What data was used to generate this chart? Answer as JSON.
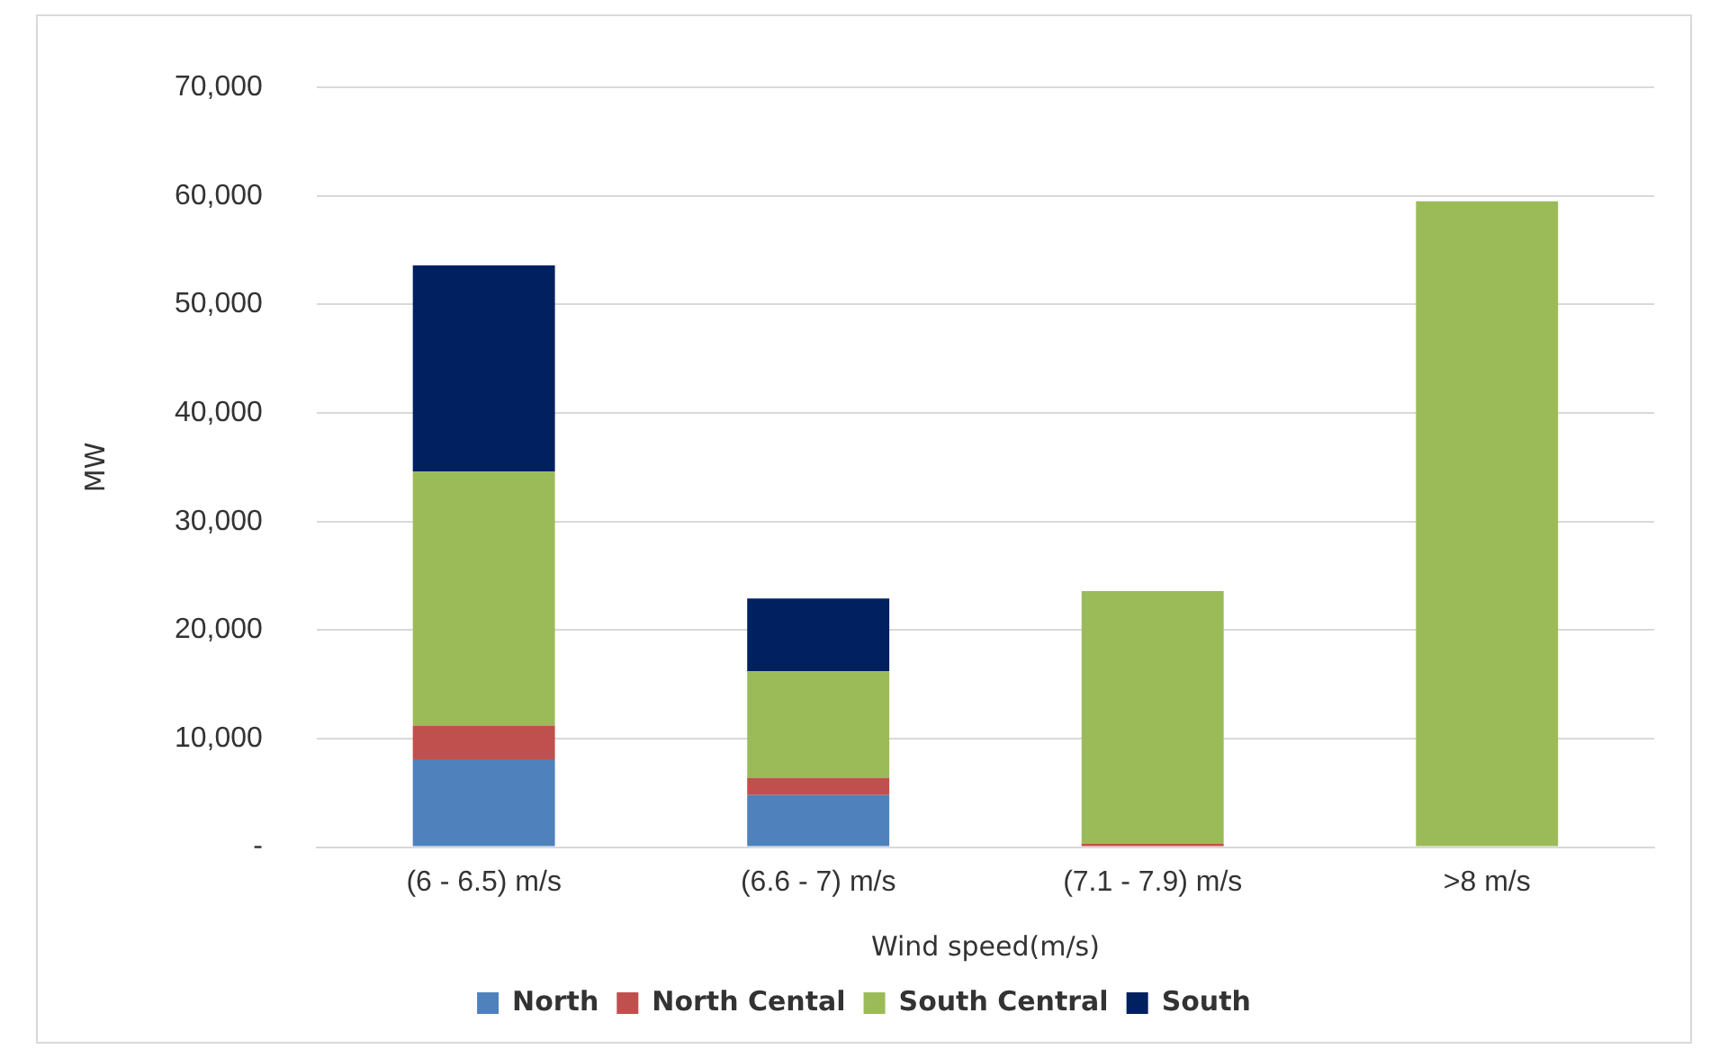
{
  "chart_data": {
    "type": "bar",
    "stacked": true,
    "xlabel": "Wind speed(m/s)",
    "ylabel": "MW",
    "categories": [
      "(6 - 6.5) m/s",
      "(6.6 - 7) m/s",
      "(7.1 - 7.9) m/s",
      ">8 m/s"
    ],
    "series": [
      {
        "name": "North",
        "color": "#4f81bd",
        "values": [
          8100,
          4800,
          0,
          0
        ]
      },
      {
        "name": "North Cental",
        "color": "#c0504d",
        "values": [
          3100,
          1600,
          300,
          0
        ]
      },
      {
        "name": "South Central",
        "color": "#9bbb59",
        "values": [
          23400,
          9800,
          23300,
          59500
        ]
      },
      {
        "name": "South",
        "color": "#002060",
        "values": [
          19000,
          6700,
          0,
          0
        ]
      }
    ],
    "ylim": [
      0,
      70000
    ],
    "yticks": [
      {
        "value": 0,
        "label": "-"
      },
      {
        "value": 10000,
        "label": "10,000"
      },
      {
        "value": 20000,
        "label": "20,000"
      },
      {
        "value": 30000,
        "label": "30,000"
      },
      {
        "value": 40000,
        "label": "40,000"
      },
      {
        "value": 50000,
        "label": "50,000"
      },
      {
        "value": 60000,
        "label": "60,000"
      },
      {
        "value": 70000,
        "label": "70,000"
      }
    ],
    "grid": "y",
    "legend": "bottom"
  }
}
